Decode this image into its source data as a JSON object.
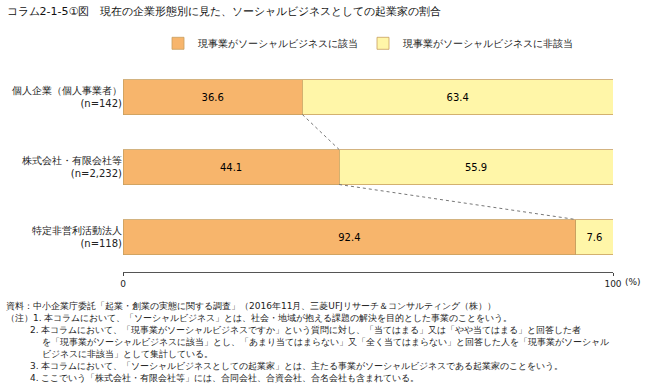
{
  "chart_data": {
    "type": "bar",
    "title": "コラム2-1-5①図　現在の企業形態別に見た、ソーシャルビジネスとしての起業家の割合",
    "orientation": "horizontal",
    "stacked": true,
    "data_labels": true,
    "grid": false,
    "legend": "top",
    "categories": [
      "個人企業（個人事業者）\n(n=142)",
      "株式会社・有限会社等\n(n=2,232)",
      "特定非営利活動法人\n(n=118)"
    ],
    "series": [
      {
        "name": "現事業がソーシャルビジネスに該当",
        "color": "#F7B56C",
        "values": [
          36.6,
          44.1,
          92.4
        ]
      },
      {
        "name": "現事業がソーシャルビジネスに非該当",
        "color": "#FFF6A8",
        "values": [
          63.4,
          55.9,
          7.6
        ]
      }
    ],
    "xlim": [
      0,
      100
    ],
    "xticks": [
      0,
      100
    ],
    "xlabel": "(%)",
    "annotations": [
      "資料：中小企業庁委託「起業・創業の実態に関する調査」（2016年11月、三菱UFJリサーチ＆コンサルティング（株））",
      "（注）1. 本コラムにおいて、「ソーシャルビジネス」とは、社会・地域が抱える課題の解決を目的とした事業のことをいう。",
      "2. 本コラムにおいて、「現事業がソーシャルビジネスですか」という質問に対し、「当てはまる」又は「やや当てはまる」と回答した者",
      "を「現事業がソーシャルビジネスに該当」とし、「あまり当てはまらない」又「全く当てはまらない」と回答した人を「現事業がソーシャル",
      "ビジネスに非該当」として集計している。",
      "3. 本コラムにおいて、「ソーシャルビジネスとしての起業家」とは、主たる事業がソーシャルビジネスである起業家のことをいう。",
      "4. ここでいう「株式会社・有限会社等」には、合同会社、合資会社、合名会社も含まれている。"
    ]
  }
}
